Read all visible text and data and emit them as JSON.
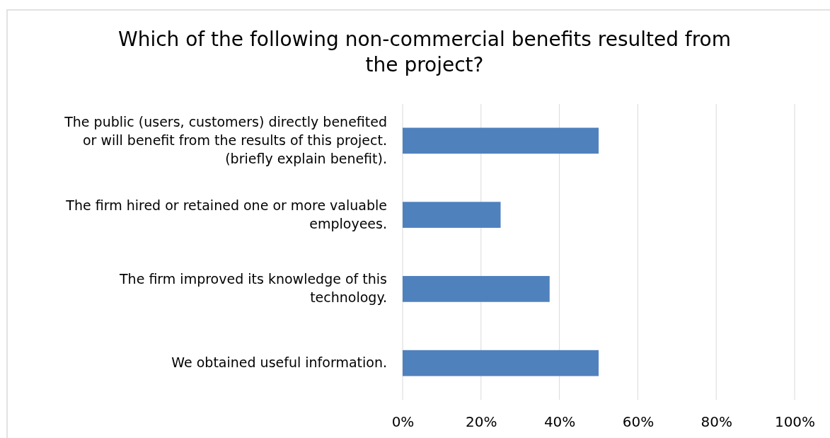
{
  "chart_data": {
    "type": "bar",
    "orientation": "horizontal",
    "title": "Which of the following non-commercial benefits resulted from the project?",
    "categories": [
      "The public (users, customers) directly benefited or will benefit from the results of this project. (briefly explain benefit).",
      "The firm hired or retained one or more valuable employees.",
      "The firm improved its knowledge of this technology.",
      "We obtained useful information."
    ],
    "values": [
      50,
      25,
      37.5,
      50
    ],
    "color": "#4f81bd",
    "xlim": [
      0,
      100
    ],
    "xticks": [
      {
        "value": 0,
        "label": "0%"
      },
      {
        "value": 20,
        "label": "20%"
      },
      {
        "value": 40,
        "label": "40%"
      },
      {
        "value": 60,
        "label": "60%"
      },
      {
        "value": 80,
        "label": "80%"
      },
      {
        "value": 100,
        "label": "100%"
      }
    ],
    "grid": "x"
  }
}
